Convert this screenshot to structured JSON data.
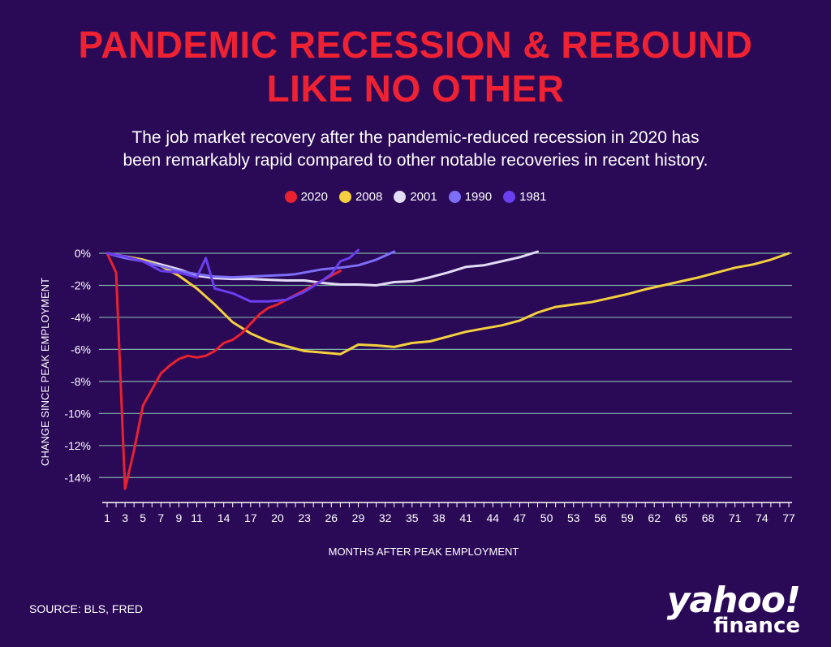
{
  "title": {
    "line1": "PANDEMIC RECESSION & REBOUND",
    "line2": "LIKE NO OTHER"
  },
  "subtitle": {
    "line1": "The job market recovery after the pandemic-reduced recession in 2020 has",
    "line2": "been remarkably rapid compared to other notable recoveries in recent history."
  },
  "source": "SOURCE: BLS, FRED",
  "logo": {
    "main": "yahoo!",
    "sub": "finance"
  },
  "colors": {
    "background": "#2a0957",
    "title": "#ef2233",
    "grid": "#7fb3a8",
    "axis": "#ffffff"
  },
  "chart_data": {
    "type": "line",
    "xlabel": "MONTHS AFTER PEAK EMPLOYMENT",
    "ylabel": "CHANGE SINCE PEAK EMPLOYMENT",
    "xlim": [
      1,
      77
    ],
    "ylim": [
      -15,
      0
    ],
    "x_tick_labels": [
      1,
      3,
      5,
      7,
      9,
      11,
      14,
      17,
      20,
      23,
      26,
      29,
      32,
      35,
      38,
      41,
      44,
      47,
      50,
      53,
      56,
      59,
      62,
      65,
      68,
      71,
      74,
      77
    ],
    "y_ticks": [
      0,
      -2,
      -4,
      -6,
      -8,
      -10,
      -12,
      -14
    ],
    "y_tick_labels": [
      "0%",
      "-2%",
      "-4%",
      "-6%",
      "-8%",
      "-10%",
      "-12%",
      "-14%"
    ],
    "series": [
      {
        "name": "2020",
        "color": "#e8222f",
        "points": [
          [
            1,
            0
          ],
          [
            2,
            -1.2
          ],
          [
            3,
            -14.7
          ],
          [
            4,
            -12.3
          ],
          [
            5,
            -9.5
          ],
          [
            6,
            -8.5
          ],
          [
            7,
            -7.5
          ],
          [
            8,
            -7.0
          ],
          [
            9,
            -6.6
          ],
          [
            10,
            -6.4
          ],
          [
            11,
            -6.5
          ],
          [
            12,
            -6.4
          ],
          [
            13,
            -6.1
          ],
          [
            14,
            -5.6
          ],
          [
            15,
            -5.4
          ],
          [
            16,
            -5.0
          ],
          [
            17,
            -4.4
          ],
          [
            18,
            -3.8
          ],
          [
            19,
            -3.4
          ],
          [
            20,
            -3.2
          ],
          [
            21,
            -2.9
          ],
          [
            22,
            -2.6
          ],
          [
            23,
            -2.3
          ],
          [
            24,
            -2.0
          ],
          [
            25,
            -1.7
          ],
          [
            26,
            -1.4
          ],
          [
            27,
            -1.1
          ]
        ]
      },
      {
        "name": "2008",
        "color": "#f4d03f",
        "points": [
          [
            1,
            0
          ],
          [
            3,
            -0.2
          ],
          [
            5,
            -0.4
          ],
          [
            7,
            -0.8
          ],
          [
            9,
            -1.4
          ],
          [
            11,
            -2.2
          ],
          [
            13,
            -3.2
          ],
          [
            15,
            -4.3
          ],
          [
            17,
            -5.0
          ],
          [
            19,
            -5.5
          ],
          [
            21,
            -5.8
          ],
          [
            23,
            -6.1
          ],
          [
            25,
            -6.2
          ],
          [
            27,
            -6.3
          ],
          [
            29,
            -5.7
          ],
          [
            31,
            -5.75
          ],
          [
            33,
            -5.85
          ],
          [
            35,
            -5.6
          ],
          [
            37,
            -5.5
          ],
          [
            39,
            -5.2
          ],
          [
            41,
            -4.9
          ],
          [
            43,
            -4.7
          ],
          [
            45,
            -4.5
          ],
          [
            47,
            -4.2
          ],
          [
            49,
            -3.7
          ],
          [
            51,
            -3.35
          ],
          [
            53,
            -3.2
          ],
          [
            55,
            -3.05
          ],
          [
            57,
            -2.8
          ],
          [
            59,
            -2.55
          ],
          [
            61,
            -2.25
          ],
          [
            63,
            -2.0
          ],
          [
            65,
            -1.75
          ],
          [
            67,
            -1.5
          ],
          [
            69,
            -1.2
          ],
          [
            71,
            -0.9
          ],
          [
            73,
            -0.7
          ],
          [
            75,
            -0.4
          ],
          [
            77,
            0
          ]
        ]
      },
      {
        "name": "2001",
        "color": "#e3dcf5",
        "points": [
          [
            1,
            0
          ],
          [
            3,
            -0.2
          ],
          [
            5,
            -0.4
          ],
          [
            7,
            -0.7
          ],
          [
            9,
            -1.0
          ],
          [
            11,
            -1.4
          ],
          [
            13,
            -1.55
          ],
          [
            15,
            -1.6
          ],
          [
            17,
            -1.6
          ],
          [
            19,
            -1.65
          ],
          [
            21,
            -1.7
          ],
          [
            23,
            -1.7
          ],
          [
            25,
            -1.85
          ],
          [
            27,
            -1.95
          ],
          [
            29,
            -1.95
          ],
          [
            31,
            -2.0
          ],
          [
            33,
            -1.8
          ],
          [
            35,
            -1.75
          ],
          [
            37,
            -1.5
          ],
          [
            39,
            -1.2
          ],
          [
            41,
            -0.85
          ],
          [
            43,
            -0.75
          ],
          [
            45,
            -0.5
          ],
          [
            47,
            -0.25
          ],
          [
            49,
            0.1
          ]
        ]
      },
      {
        "name": "1990",
        "color": "#7d6ef7",
        "points": [
          [
            1,
            0
          ],
          [
            3,
            -0.3
          ],
          [
            5,
            -0.5
          ],
          [
            7,
            -0.8
          ],
          [
            9,
            -1.1
          ],
          [
            11,
            -1.3
          ],
          [
            13,
            -1.45
          ],
          [
            15,
            -1.5
          ],
          [
            17,
            -1.45
          ],
          [
            19,
            -1.4
          ],
          [
            21,
            -1.35
          ],
          [
            22,
            -1.3
          ],
          [
            23,
            -1.2
          ],
          [
            25,
            -1.0
          ],
          [
            27,
            -0.9
          ],
          [
            29,
            -0.75
          ],
          [
            31,
            -0.4
          ],
          [
            33,
            0.1
          ]
        ]
      },
      {
        "name": "1981",
        "color": "#6a3ff0",
        "points": [
          [
            1,
            0
          ],
          [
            3,
            -0.2
          ],
          [
            5,
            -0.5
          ],
          [
            7,
            -1.1
          ],
          [
            9,
            -1.2
          ],
          [
            11,
            -1.5
          ],
          [
            12,
            -0.3
          ],
          [
            13,
            -2.2
          ],
          [
            15,
            -2.5
          ],
          [
            17,
            -3.0
          ],
          [
            19,
            -3.0
          ],
          [
            21,
            -2.9
          ],
          [
            23,
            -2.4
          ],
          [
            25,
            -1.7
          ],
          [
            26,
            -1.3
          ],
          [
            27,
            -0.5
          ],
          [
            28,
            -0.3
          ],
          [
            29,
            0.2
          ]
        ]
      }
    ]
  }
}
